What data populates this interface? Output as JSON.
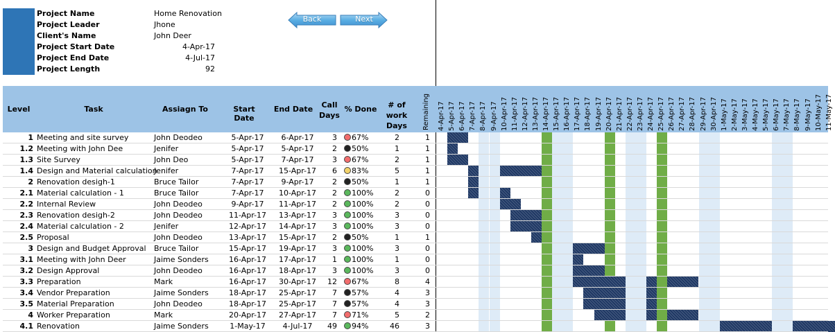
{
  "project": {
    "fields": [
      {
        "label": "Project Name",
        "value": "Home Renovation",
        "align": "left"
      },
      {
        "label": "Project Leader",
        "value": "Jhone",
        "align": "left"
      },
      {
        "label": "Client's Name",
        "value": "John Deer",
        "align": "left"
      },
      {
        "label": "Project Start Date",
        "value": "4-Apr-17",
        "align": "right"
      },
      {
        "label": "Project End Date",
        "value": "4-Jul-17",
        "align": "right"
      },
      {
        "label": "Project Length",
        "value": "92",
        "align": "right"
      }
    ]
  },
  "nav": {
    "back_label": "Back",
    "next_label": "Next"
  },
  "table": {
    "headers": {
      "level": "Level",
      "task": "Task",
      "assign_to": "Assiagn To",
      "start_date": "Start Date",
      "end_date": "End Date",
      "call_days": "Call Days",
      "pct_done": "% Done",
      "work_days": "# of work Days",
      "remaining": "Remaining"
    },
    "rows": [
      {
        "level": "1",
        "task": "Meeting and site survey",
        "assign": "John Deodeo",
        "start": "5-Apr-17",
        "end": "6-Apr-17",
        "call": "3",
        "status": "red",
        "done": "67%",
        "work": "2",
        "remaining": "1",
        "bars": [
          [
            1,
            2
          ]
        ]
      },
      {
        "level": "1.2",
        "task": "Meeting with John Dee",
        "assign": "Jenifer",
        "start": "5-Apr-17",
        "end": "5-Apr-17",
        "call": "2",
        "status": "black",
        "done": "50%",
        "work": "1",
        "remaining": "1",
        "bars": [
          [
            1,
            1
          ]
        ]
      },
      {
        "level": "1.3",
        "task": "Site Survey",
        "assign": "John Deo",
        "start": "5-Apr-17",
        "end": "7-Apr-17",
        "call": "3",
        "status": "red",
        "done": "67%",
        "work": "2",
        "remaining": "1",
        "bars": [
          [
            1,
            2
          ]
        ]
      },
      {
        "level": "1.4",
        "task": "Design and Material calculation",
        "assign": "Jenifer",
        "start": "7-Apr-17",
        "end": "15-Apr-17",
        "call": "6",
        "status": "yellow",
        "done": "83%",
        "work": "5",
        "remaining": "1",
        "bars": [
          [
            3,
            3
          ],
          [
            6,
            9
          ]
        ]
      },
      {
        "level": "2",
        "task": "Renovation desigh-1",
        "assign": "Bruce Tailor",
        "start": "7-Apr-17",
        "end": "9-Apr-17",
        "call": "2",
        "status": "black",
        "done": "50%",
        "work": "1",
        "remaining": "1",
        "bars": [
          [
            3,
            3
          ]
        ]
      },
      {
        "level": "2.1",
        "task": "Material calculation - 1",
        "assign": "Bruce Tailor",
        "start": "7-Apr-17",
        "end": "10-Apr-17",
        "call": "2",
        "status": "green",
        "done": "100%",
        "work": "2",
        "remaining": "0",
        "bars": [
          [
            3,
            3
          ],
          [
            6,
            6
          ]
        ]
      },
      {
        "level": "2.2",
        "task": "Internal Review",
        "assign": "John Deodeo",
        "start": "9-Apr-17",
        "end": "11-Apr-17",
        "call": "2",
        "status": "green",
        "done": "100%",
        "work": "2",
        "remaining": "0",
        "bars": [
          [
            6,
            7
          ]
        ]
      },
      {
        "level": "2.3",
        "task": "Renovation desigh-2",
        "assign": "John Deodeo",
        "start": "11-Apr-17",
        "end": "13-Apr-17",
        "call": "3",
        "status": "green",
        "done": "100%",
        "work": "3",
        "remaining": "0",
        "bars": [
          [
            7,
            9
          ]
        ]
      },
      {
        "level": "2.4",
        "task": "Material calculation - 2",
        "assign": "Jenifer",
        "start": "12-Apr-17",
        "end": "14-Apr-17",
        "call": "3",
        "status": "green",
        "done": "100%",
        "work": "3",
        "remaining": "0",
        "bars": [
          [
            7,
            9
          ]
        ]
      },
      {
        "level": "2.5",
        "task": "Proposal",
        "assign": "John Deodeo",
        "start": "13-Apr-17",
        "end": "15-Apr-17",
        "call": "2",
        "status": "black",
        "done": "50%",
        "work": "1",
        "remaining": "1",
        "bars": [
          [
            9,
            9
          ]
        ]
      },
      {
        "level": "3",
        "task": "Design and Budget Approval",
        "assign": "Bruce Tailor",
        "start": "15-Apr-17",
        "end": "19-Apr-17",
        "call": "3",
        "status": "green",
        "done": "100%",
        "work": "3",
        "remaining": "0",
        "bars": [
          [
            13,
            15
          ]
        ]
      },
      {
        "level": "3.1",
        "task": "Meeting with John Deer",
        "assign": "Jaime Sonders",
        "start": "16-Apr-17",
        "end": "17-Apr-17",
        "call": "1",
        "status": "green",
        "done": "100%",
        "work": "1",
        "remaining": "0",
        "bars": [
          [
            13,
            13
          ]
        ]
      },
      {
        "level": "3.2",
        "task": "Design Approval",
        "assign": "John Deodeo",
        "start": "16-Apr-17",
        "end": "18-Apr-17",
        "call": "3",
        "status": "green",
        "done": "100%",
        "work": "3",
        "remaining": "0",
        "bars": [
          [
            13,
            15
          ]
        ]
      },
      {
        "level": "3.3",
        "task": "Preparation",
        "assign": "Mark",
        "start": "16-Apr-17",
        "end": "30-Apr-17",
        "call": "12",
        "status": "red",
        "done": "67%",
        "work": "8",
        "remaining": "4",
        "bars": [
          [
            13,
            17
          ],
          [
            20,
            20
          ],
          [
            22,
            24
          ]
        ]
      },
      {
        "level": "3.4",
        "task": "Vendor Preparation",
        "assign": "Jaime Sonders",
        "start": "18-Apr-17",
        "end": "25-Apr-17",
        "call": "7",
        "status": "black",
        "done": "57%",
        "work": "4",
        "remaining": "3",
        "bars": [
          [
            14,
            17
          ],
          [
            20,
            20
          ]
        ]
      },
      {
        "level": "3.5",
        "task": "Material Preparation",
        "assign": "John Deodeo",
        "start": "18-Apr-17",
        "end": "25-Apr-17",
        "call": "7",
        "status": "black",
        "done": "57%",
        "work": "4",
        "remaining": "3",
        "bars": [
          [
            14,
            17
          ],
          [
            20,
            20
          ]
        ]
      },
      {
        "level": "4",
        "task": "Worker Preparation",
        "assign": "Mark",
        "start": "20-Apr-17",
        "end": "27-Apr-17",
        "call": "7",
        "status": "red",
        "done": "71%",
        "work": "5",
        "remaining": "2",
        "bars": [
          [
            15,
            17
          ],
          [
            20,
            20
          ],
          [
            22,
            24
          ]
        ]
      },
      {
        "level": "4.1",
        "task": "Renovation",
        "assign": "Jaime Sonders",
        "start": "1-May-17",
        "end": "4-Jul-17",
        "call": "49",
        "status": "green",
        "done": "94%",
        "work": "46",
        "remaining": "3",
        "bars": [
          [
            27,
            31
          ],
          [
            34,
            37
          ]
        ]
      }
    ]
  },
  "timeline": {
    "dates": [
      "4-Apr-17",
      "5-Apr-17",
      "6-Apr-17",
      "7-Apr-17",
      "8-Apr-17",
      "9-Apr-17",
      "10-Apr-17",
      "11-Apr-17",
      "12-Apr-17",
      "13-Apr-17",
      "14-Apr-17",
      "15-Apr-17",
      "16-Apr-17",
      "17-Apr-17",
      "18-Apr-17",
      "19-Apr-17",
      "20-Apr-17",
      "21-Apr-17",
      "22-Apr-17",
      "23-Apr-17",
      "24-Apr-17",
      "25-Apr-17",
      "26-Apr-17",
      "27-Apr-17",
      "28-Apr-17",
      "29-Apr-17",
      "30-Apr-17",
      "1-May-17",
      "2-May-17",
      "3-May-17",
      "4-May-17",
      "5-May-17",
      "6-May-17",
      "7-May-17",
      "8-May-17",
      "9-May-17",
      "10-May-17",
      "11-May-17"
    ],
    "weekend_cols": [
      4,
      5,
      11,
      12,
      18,
      19,
      25,
      26,
      32,
      33
    ],
    "milestone_cols": [
      10,
      16,
      21
    ],
    "colors": {
      "weekend": "#deebf7",
      "milestone": "#70ad47",
      "bar": "#1f3864",
      "header": "#9dc3e6",
      "logo": "#2e75b6"
    }
  }
}
